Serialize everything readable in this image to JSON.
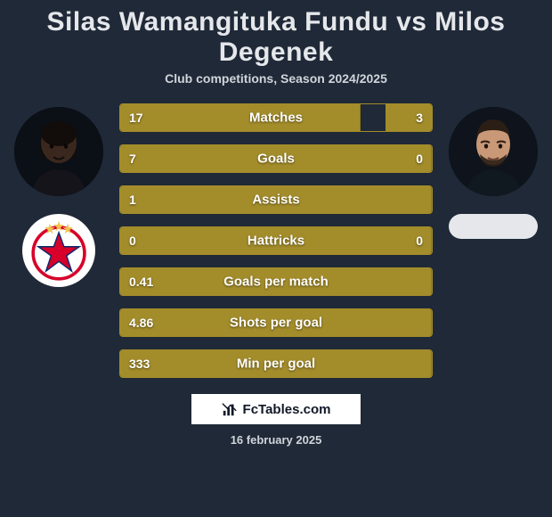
{
  "header": {
    "title": "Silas Wamangituka Fundu vs Milos Degenek",
    "subtitle": "Club competitions, Season 2024/2025"
  },
  "colors": {
    "background": "#1f2937",
    "bar_fill": "#a38c2a",
    "bar_border": "#a38c2a",
    "text_primary": "#ffffff",
    "text_muted": "#d1d5db"
  },
  "bars": [
    {
      "label": "Matches",
      "left_value": "17",
      "right_value": "3",
      "left_pct": 77,
      "right_pct": 15
    },
    {
      "label": "Goals",
      "left_value": "7",
      "right_value": "0",
      "left_pct": 100,
      "right_pct": 0
    },
    {
      "label": "Assists",
      "left_value": "1",
      "right_value": "",
      "left_pct": 100,
      "right_pct": 0
    },
    {
      "label": "Hattricks",
      "left_value": "0",
      "right_value": "0",
      "left_pct": 100,
      "right_pct": 0
    },
    {
      "label": "Goals per match",
      "left_value": "0.41",
      "right_value": "",
      "left_pct": 100,
      "right_pct": 0
    },
    {
      "label": "Shots per goal",
      "left_value": "4.86",
      "right_value": "",
      "left_pct": 100,
      "right_pct": 0
    },
    {
      "label": "Min per goal",
      "left_value": "333",
      "right_value": "",
      "left_pct": 100,
      "right_pct": 0
    }
  ],
  "player_left": {
    "name": "Silas Wamangituka Fundu",
    "skin": "#3a281f",
    "club_primary": "#d6002a",
    "club_secondary": "#ffffff",
    "club_star": "#f0c34e"
  },
  "player_right": {
    "name": "Milos Degenek",
    "skin": "#c99877"
  },
  "footer": {
    "site_label": "FcTables.com",
    "date_text": "16 february 2025"
  }
}
